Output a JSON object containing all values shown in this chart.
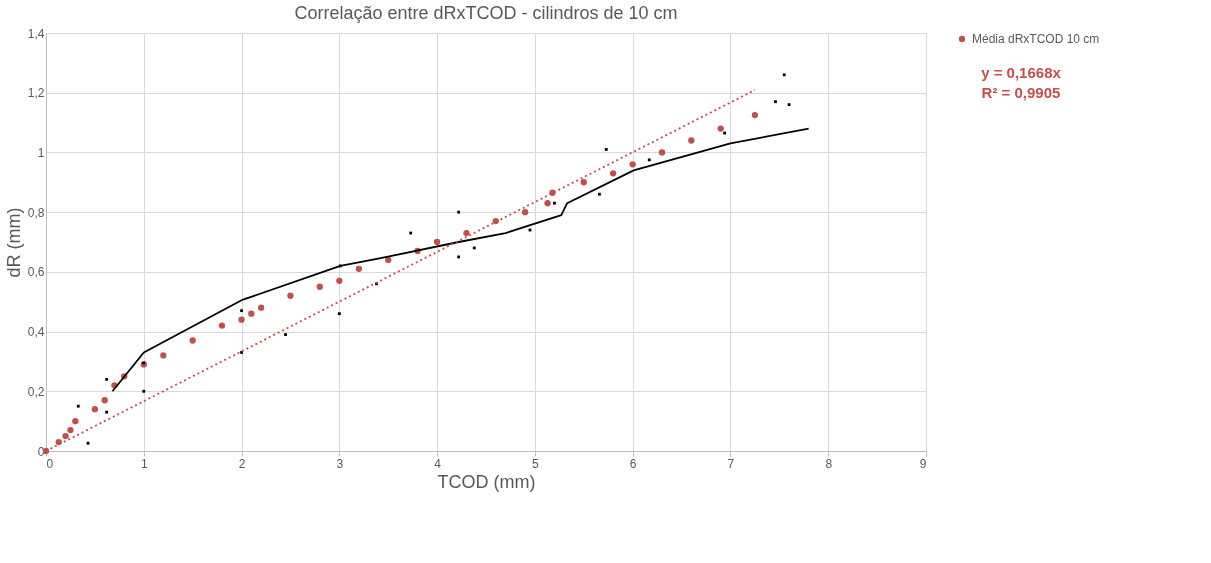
{
  "chart_data": {
    "type": "scatter",
    "title": "Correlação entre dRxTCOD - cilindros de 10 cm",
    "xlabel": "TCOD (mm)",
    "ylabel": "dR (mm)",
    "xlim": [
      0,
      9
    ],
    "xticks": [
      0,
      1,
      2,
      3,
      4,
      5,
      6,
      7,
      8,
      9
    ],
    "ylim": [
      0,
      1.4
    ],
    "yticks": [
      0,
      {
        "value": 0.2,
        "label": "0,2"
      },
      {
        "value": 0.4,
        "label": "0,4"
      },
      {
        "value": 0.6,
        "label": "0,6"
      },
      {
        "value": 0.8,
        "label": "0,8"
      },
      1,
      {
        "value": 1.2,
        "label": "1,2"
      },
      {
        "value": 1.4,
        "label": "1,4"
      }
    ],
    "grid": true,
    "legend": "right",
    "annotations": [
      "y = 0,1668x",
      "R² = 0,9905"
    ],
    "series": [
      {
        "name": "Média dRxTCOD 10 cm",
        "color": "#c0504d",
        "marker": "circle",
        "x": [
          0,
          0.13,
          0.2,
          0.25,
          0.3,
          0.5,
          0.6,
          0.7,
          0.8,
          1.0,
          1.2,
          1.5,
          1.8,
          2.0,
          2.1,
          2.2,
          2.5,
          2.8,
          3.0,
          3.2,
          3.5,
          3.8,
          4.0,
          4.3,
          4.6,
          4.9,
          5.13,
          5.18,
          5.5,
          5.8,
          6.0,
          6.3,
          6.6,
          6.9,
          7.25
        ],
        "values": [
          0,
          0.03,
          0.05,
          0.07,
          0.1,
          0.14,
          0.17,
          0.22,
          0.25,
          0.29,
          0.32,
          0.37,
          0.42,
          0.44,
          0.46,
          0.48,
          0.52,
          0.55,
          0.57,
          0.61,
          0.64,
          0.67,
          0.7,
          0.73,
          0.77,
          0.8,
          0.83,
          0.865,
          0.9,
          0.93,
          0.96,
          1.0,
          1.04,
          1.08,
          1.125
        ]
      },
      {
        "type": "line",
        "color": "#000000",
        "line_style": "solid",
        "x": [
          0.68,
          1.0,
          2.0,
          3.01,
          3.41,
          4.22,
          4.7,
          5.27,
          5.33,
          6.01,
          7.0,
          7.8
        ],
        "values": [
          0.2,
          0.33,
          0.505,
          0.62,
          0.645,
          0.7,
          0.73,
          0.79,
          0.83,
          0.94,
          1.03,
          1.08
        ]
      },
      {
        "color": "#000000",
        "marker": "square",
        "x": [
          0.33,
          0.62,
          1.0,
          2.0,
          3.01,
          3.73,
          4.22,
          5.73,
          7.55
        ],
        "values": [
          0.15,
          0.24,
          0.295,
          0.47,
          0.62,
          0.73,
          0.8,
          1.01,
          1.26
        ]
      },
      {
        "color": "#000000",
        "marker": "square",
        "x": [
          0.43,
          0.62,
          1.0,
          2.0,
          2.45,
          3.0,
          3.38,
          4.22,
          4.38,
          4.95,
          5.2,
          5.66,
          6.17,
          6.94,
          7.46,
          7.6
        ],
        "values": [
          0.026,
          0.13,
          0.2,
          0.33,
          0.39,
          0.46,
          0.56,
          0.65,
          0.68,
          0.74,
          0.83,
          0.86,
          0.975,
          1.065,
          1.17,
          1.16
        ]
      },
      {
        "type": "line",
        "color": "#c0504d",
        "line_style": "dotted",
        "x": [
          0,
          7.25
        ],
        "values": [
          0,
          1.209
        ]
      }
    ]
  }
}
